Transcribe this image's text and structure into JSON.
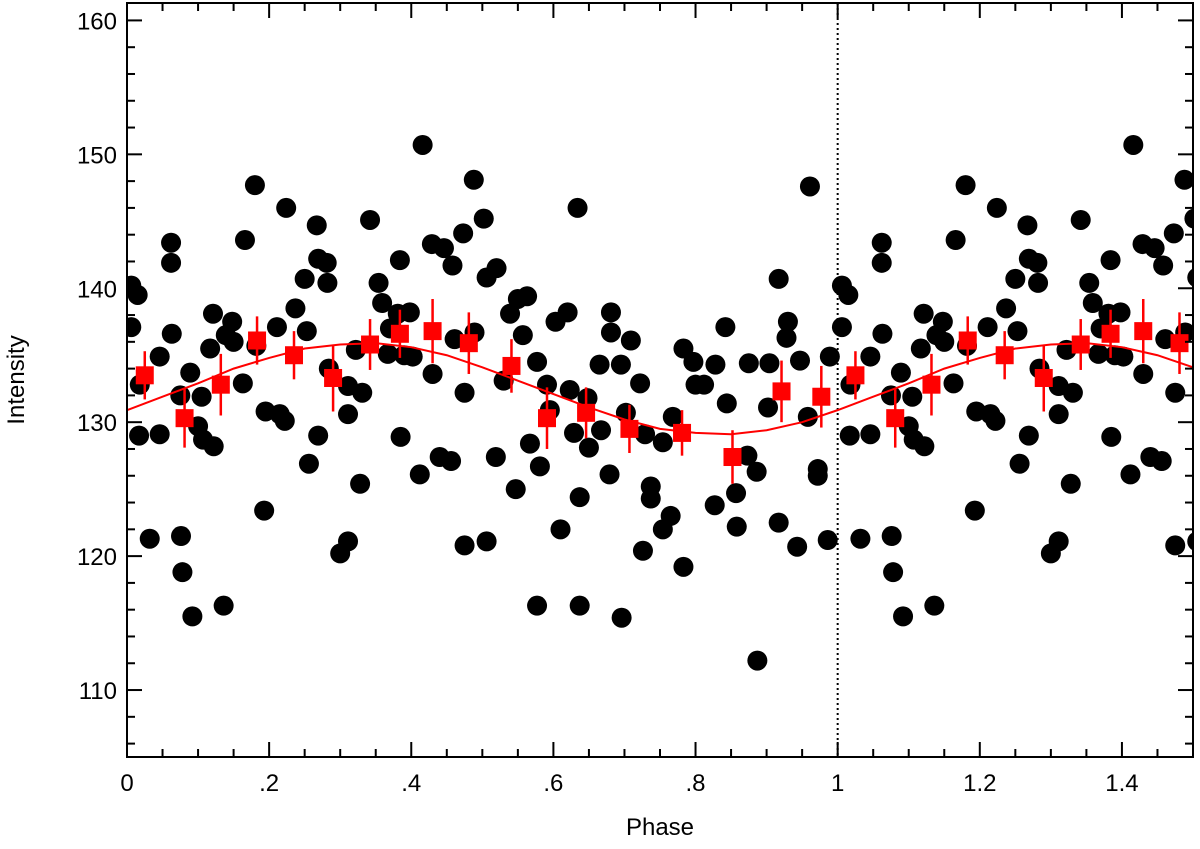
{
  "chart_data": {
    "type": "scatter",
    "xlabel": "Phase",
    "ylabel": "Intensity",
    "xlim": [
      0,
      1.5
    ],
    "ylim": [
      105,
      161.3
    ],
    "xticks": [
      0,
      {
        "value": 0.2,
        "label": ".2"
      },
      {
        "value": 0.4,
        "label": ".4"
      },
      {
        "value": 0.6,
        "label": ".6"
      },
      {
        "value": 0.8,
        "label": ".8"
      },
      1,
      1.2,
      1.4
    ],
    "yticks": [
      110,
      120,
      130,
      140,
      150,
      160
    ],
    "xminorticks": [
      0.05,
      0.1,
      0.15,
      0.25,
      0.3,
      0.35,
      0.45,
      0.5,
      0.55,
      0.65,
      0.7,
      0.75,
      0.85,
      0.9,
      0.95,
      1.05,
      1.1,
      1.15,
      1.25,
      1.3,
      1.35,
      1.45
    ],
    "yminorticks": [
      106,
      108,
      112,
      114,
      116,
      118,
      122,
      124,
      126,
      128,
      132,
      134,
      136,
      138,
      142,
      144,
      146,
      148,
      152,
      154,
      156,
      158
    ],
    "reference_line_x": 1,
    "points": {
      "color": "#000000",
      "x": [
        0.006,
        0.006,
        0.015,
        0.018,
        0.017,
        0.032,
        0.046,
        0.046,
        0.062,
        0.062,
        0.063,
        0.075,
        0.076,
        0.078,
        0.089,
        0.092,
        0.1,
        0.105,
        0.107,
        0.117,
        0.121,
        0.122,
        0.136,
        0.139,
        0.148,
        0.15,
        0.166,
        0.163,
        0.18,
        0.182,
        0.193,
        0.195,
        0.211,
        0.215,
        0.222,
        0.224,
        0.237,
        0.25,
        0.253,
        0.256,
        0.267,
        0.269,
        0.269,
        0.281,
        0.282,
        0.284,
        0.3,
        0.311,
        0.311,
        0.311,
        0.322,
        0.328,
        0.331,
        0.342,
        0.354,
        0.359,
        0.367,
        0.37,
        0.381,
        0.385,
        0.384,
        0.39,
        0.398,
        0.402,
        0.412,
        0.416,
        0.429,
        0.43,
        0.44,
        0.446,
        0.456,
        0.458,
        0.461,
        0.473,
        0.475,
        0.475,
        0.488,
        0.489,
        0.502,
        0.506,
        0.506,
        0.519,
        0.52,
        0.53,
        0.539,
        0.547,
        0.55,
        0.557,
        0.563,
        0.567,
        0.577,
        0.577,
        0.581,
        0.591,
        0.595,
        0.603,
        0.61,
        0.62,
        0.623,
        0.629,
        0.634,
        0.637,
        0.637,
        0.648,
        0.65,
        0.665,
        0.667,
        0.679,
        0.681,
        0.681,
        0.695,
        0.696,
        0.702,
        0.709,
        0.722,
        0.726,
        0.729,
        0.737,
        0.737,
        0.754,
        0.754,
        0.765,
        0.768,
        0.783,
        0.783,
        0.797,
        0.8,
        0.812,
        0.827,
        0.828,
        0.842,
        0.844,
        0.857,
        0.858,
        0.873,
        0.875,
        0.886,
        0.887,
        0.902,
        0.904,
        0.917,
        0.917,
        0.928,
        0.93,
        0.943,
        0.947,
        0.958,
        0.961,
        0.972,
        0.972,
        0.986,
        0.989,
        1.006,
        1.006,
        1.015,
        1.018,
        1.017,
        1.032,
        1.046,
        1.046,
        1.062,
        1.062,
        1.063,
        1.075,
        1.076,
        1.078,
        1.089,
        1.092,
        1.1,
        1.105,
        1.107,
        1.117,
        1.121,
        1.122,
        1.136,
        1.139,
        1.148,
        1.15,
        1.166,
        1.163,
        1.18,
        1.182,
        1.193,
        1.195,
        1.211,
        1.215,
        1.222,
        1.224,
        1.237,
        1.25,
        1.253,
        1.256,
        1.267,
        1.269,
        1.269,
        1.281,
        1.282,
        1.284,
        1.3,
        1.311,
        1.311,
        1.311,
        1.322,
        1.328,
        1.331,
        1.342,
        1.354,
        1.359,
        1.367,
        1.37,
        1.381,
        1.385,
        1.384,
        1.39,
        1.398,
        1.402,
        1.412,
        1.416,
        1.429,
        1.43,
        1.44,
        1.446,
        1.456,
        1.458,
        1.461,
        1.473,
        1.475,
        1.475,
        1.488,
        1.489,
        1.502,
        1.506,
        1.506
      ],
      "y": [
        137.1,
        140.2,
        139.5,
        132.8,
        129.0,
        121.3,
        134.9,
        129.1,
        141.9,
        143.4,
        136.6,
        132.0,
        121.5,
        118.8,
        133.7,
        115.5,
        129.7,
        131.9,
        128.7,
        135.5,
        138.1,
        128.2,
        116.3,
        136.5,
        137.5,
        136.0,
        143.6,
        132.9,
        147.7,
        135.7,
        123.4,
        130.8,
        137.1,
        130.6,
        130.1,
        146.0,
        138.5,
        140.7,
        136.8,
        126.9,
        144.7,
        129.0,
        142.2,
        141.9,
        140.4,
        134.0,
        120.2,
        121.1,
        130.6,
        132.7,
        135.4,
        125.4,
        132.2,
        145.1,
        140.4,
        138.9,
        135.1,
        137.0,
        138.1,
        128.9,
        142.1,
        135.0,
        138.2,
        134.9,
        126.1,
        150.7,
        143.3,
        133.6,
        127.4,
        143.0,
        127.1,
        141.7,
        136.2,
        144.1,
        120.8,
        132.2,
        148.1,
        136.7,
        145.2,
        140.8,
        121.1,
        127.4,
        141.5,
        133.1,
        138.1,
        125.0,
        139.2,
        136.5,
        139.4,
        128.4,
        116.3,
        134.5,
        126.7,
        132.8,
        130.9,
        137.5,
        122.0,
        138.2,
        132.4,
        129.2,
        146.0,
        124.4,
        116.3,
        131.8,
        128.1,
        134.3,
        129.4,
        126.1,
        138.2,
        136.7,
        134.3,
        115.4,
        130.7,
        136.1,
        132.9,
        120.4,
        129.1,
        125.2,
        124.3,
        128.5,
        122.0,
        123.0,
        130.4,
        119.2,
        135.5,
        134.5,
        132.8,
        132.8,
        123.8,
        134.3,
        137.1,
        131.4,
        124.7,
        122.2,
        127.5,
        134.4,
        126.3,
        112.2,
        131.1,
        134.4,
        140.7,
        122.5,
        136.3,
        137.5,
        120.7,
        134.6,
        130.4,
        147.6,
        126.5,
        126.0,
        121.2,
        134.9,
        137.1,
        140.2,
        139.5,
        132.8,
        129.0,
        121.3,
        134.9,
        129.1,
        141.9,
        143.4,
        136.6,
        132.0,
        121.5,
        118.8,
        133.7,
        115.5,
        129.7,
        131.9,
        128.7,
        135.5,
        138.1,
        128.2,
        116.3,
        136.5,
        137.5,
        136.0,
        143.6,
        132.9,
        147.7,
        135.7,
        123.4,
        130.8,
        137.1,
        130.6,
        130.1,
        146.0,
        138.5,
        140.7,
        136.8,
        126.9,
        144.7,
        129.0,
        142.2,
        141.9,
        140.4,
        134.0,
        120.2,
        121.1,
        130.6,
        132.7,
        135.4,
        125.4,
        132.2,
        145.1,
        140.4,
        138.9,
        135.1,
        137.0,
        138.1,
        128.9,
        142.1,
        135.0,
        138.2,
        134.9,
        126.1,
        150.7,
        143.3,
        133.6,
        127.4,
        143.0,
        127.1,
        141.7,
        136.2,
        144.1,
        120.8,
        132.2,
        148.1,
        136.7,
        145.2,
        140.8,
        121.1
      ]
    },
    "binned": {
      "color": "#ff0000",
      "x": [
        0.025,
        0.081,
        0.132,
        0.183,
        0.235,
        0.29,
        0.342,
        0.384,
        0.43,
        0.481,
        0.541,
        0.591,
        0.646,
        0.707,
        0.781,
        0.852,
        0.921,
        0.977,
        1.025,
        1.081,
        1.132,
        1.183,
        1.235,
        1.29,
        1.342,
        1.384,
        1.43,
        1.481
      ],
      "y": [
        133.5,
        130.3,
        132.8,
        136.1,
        135.0,
        133.3,
        135.8,
        136.6,
        136.8,
        135.9,
        134.2,
        130.3,
        130.7,
        129.5,
        129.2,
        127.4,
        132.3,
        131.9,
        133.5,
        130.3,
        132.8,
        136.1,
        135.0,
        133.3,
        135.8,
        136.6,
        136.8,
        135.9
      ],
      "err": [
        1.8,
        2.2,
        2.3,
        1.8,
        1.8,
        2.5,
        1.9,
        1.8,
        2.4,
        2.3,
        2.0,
        2.3,
        1.9,
        1.8,
        1.7,
        2.0,
        2.3,
        2.3,
        1.8,
        2.2,
        2.3,
        1.8,
        1.8,
        2.5,
        1.9,
        1.8,
        2.4,
        2.3
      ]
    },
    "fit": {
      "color": "#ff0000",
      "x": [
        0,
        0.05,
        0.1,
        0.15,
        0.2,
        0.25,
        0.3,
        0.35,
        0.4,
        0.45,
        0.5,
        0.55,
        0.6,
        0.65,
        0.7,
        0.75,
        0.8,
        0.85,
        0.9,
        0.95,
        1,
        1.05,
        1.1,
        1.15,
        1.2,
        1.25,
        1.3,
        1.35,
        1.4,
        1.45,
        1.5
      ],
      "values": [
        130.9,
        131.9,
        132.9,
        134.0,
        134.8,
        135.5,
        135.8,
        135.9,
        135.6,
        135.0,
        134.1,
        133.1,
        132.1,
        131.1,
        130.2,
        129.5,
        129.2,
        129.1,
        129.4,
        130.0,
        130.9,
        131.9,
        132.9,
        134.0,
        134.8,
        135.5,
        135.8,
        135.9,
        135.6,
        135.0,
        134.1
      ]
    }
  }
}
